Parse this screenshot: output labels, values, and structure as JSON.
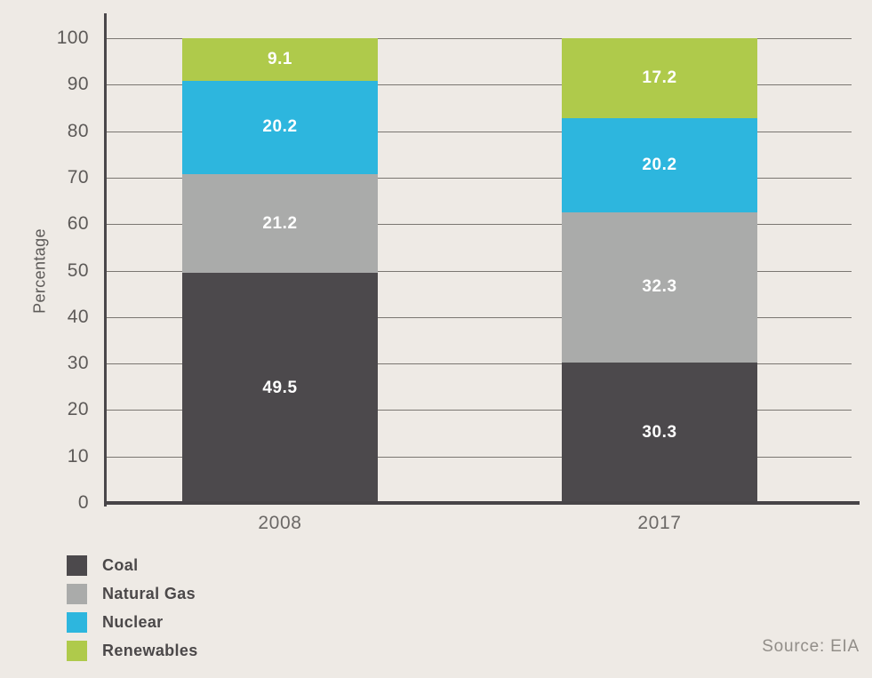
{
  "chart_data": {
    "type": "bar",
    "stacked": true,
    "categories": [
      "2008",
      "2017"
    ],
    "series": [
      {
        "name": "Coal",
        "color": "#4C494C",
        "values": [
          49.5,
          30.3
        ]
      },
      {
        "name": "Natural Gas",
        "color": "#AAABAA",
        "values": [
          21.2,
          32.3
        ]
      },
      {
        "name": "Nuclear",
        "color": "#2DB6DE",
        "values": [
          20.2,
          20.2
        ]
      },
      {
        "name": "Renewables",
        "color": "#AFCA4B",
        "values": [
          9.1,
          17.2
        ]
      }
    ],
    "ylabel": "Percentage",
    "ylim": [
      0,
      100
    ],
    "yticks": [
      0,
      10,
      20,
      30,
      40,
      50,
      60,
      70,
      80,
      90,
      100
    ],
    "grid": true,
    "legend_position": "bottom-left",
    "value_label_color": "#FFFFFF",
    "source": "Source: EIA"
  },
  "colors": {
    "background": "#EEEAE5",
    "axis": "#4A474A",
    "gridline": "#7A7671",
    "tick_text": "#5D5A58",
    "category_text": "#6B6866",
    "legend_text": "#4B4849",
    "source_text": "#918D88"
  }
}
